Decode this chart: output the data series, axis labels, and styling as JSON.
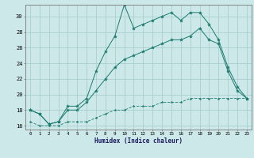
{
  "xlabel": "Humidex (Indice chaleur)",
  "ylabel": "",
  "bg_color": "#cde8e8",
  "grid_color": "#aacece",
  "line_color": "#1a7a6e",
  "xlim": [
    -0.5,
    23.5
  ],
  "ylim": [
    15.5,
    31.5
  ],
  "xticks": [
    0,
    1,
    2,
    3,
    4,
    5,
    6,
    7,
    8,
    9,
    10,
    11,
    12,
    13,
    14,
    15,
    16,
    17,
    18,
    19,
    20,
    21,
    22,
    23
  ],
  "yticks": [
    16,
    18,
    20,
    22,
    24,
    26,
    28,
    30
  ],
  "series1_x": [
    0,
    1,
    2,
    3,
    4,
    5,
    6,
    7,
    8,
    9,
    10,
    11,
    12,
    13,
    14,
    15,
    16,
    17,
    18,
    19,
    20,
    21,
    22,
    23
  ],
  "series1_y": [
    18.0,
    17.5,
    16.2,
    16.5,
    18.5,
    18.5,
    19.5,
    23.0,
    25.5,
    27.5,
    31.5,
    28.5,
    29.0,
    29.5,
    30.0,
    30.5,
    29.5,
    30.5,
    30.5,
    29.0,
    27.0,
    23.5,
    21.0,
    19.5
  ],
  "series2_x": [
    0,
    1,
    2,
    3,
    4,
    5,
    6,
    7,
    8,
    9,
    10,
    11,
    12,
    13,
    14,
    15,
    16,
    17,
    18,
    19,
    20,
    21,
    22,
    23
  ],
  "series2_y": [
    18.0,
    17.5,
    16.2,
    16.5,
    18.0,
    18.0,
    19.0,
    20.5,
    22.0,
    23.5,
    24.5,
    25.0,
    25.5,
    26.0,
    26.5,
    27.0,
    27.0,
    27.5,
    28.5,
    27.0,
    26.5,
    23.0,
    20.5,
    19.5
  ],
  "series3_x": [
    0,
    1,
    2,
    3,
    4,
    5,
    6,
    7,
    8,
    9,
    10,
    11,
    12,
    13,
    14,
    15,
    16,
    17,
    18,
    19,
    20,
    21,
    22,
    23
  ],
  "series3_y": [
    16.5,
    16.0,
    16.0,
    16.0,
    16.5,
    16.5,
    16.5,
    17.0,
    17.5,
    18.0,
    18.0,
    18.5,
    18.5,
    18.5,
    19.0,
    19.0,
    19.0,
    19.5,
    19.5,
    19.5,
    19.5,
    19.5,
    19.5,
    19.5
  ]
}
